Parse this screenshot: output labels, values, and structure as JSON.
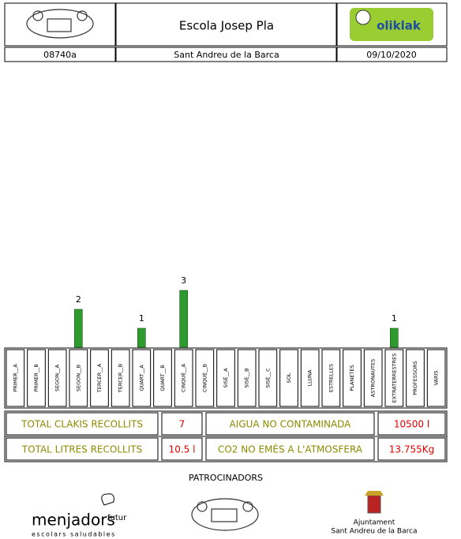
{
  "header": {
    "school": "Escola Josep Pla",
    "logo": "oliklak",
    "code": "08740a",
    "town": "Sant Andreu de la Barca",
    "date": "09/10/2020"
  },
  "chart_data": {
    "type": "bar",
    "color": "#2f9a2f",
    "categories": [
      "PRIMER__A",
      "PRIMER__B",
      "SEGON__A",
      "SEGON__B",
      "TERCER__A",
      "TERCER__B",
      "QUART__A",
      "QUART__B",
      "CINQUÈ__A",
      "CINQUÈ__B",
      "SISÈ__A",
      "SISÈ__B",
      "SISÈ__C",
      "SOL",
      "LLUNA",
      "ESTRELLES",
      "PLANETES",
      "ASTRONAUTES",
      "EXTRATERRESTRES",
      "PROFESSORS",
      "VARIS"
    ],
    "values": [
      0,
      0,
      0,
      2,
      0,
      0,
      1,
      0,
      3,
      0,
      0,
      0,
      0,
      0,
      0,
      0,
      0,
      0,
      1,
      0,
      0
    ]
  },
  "totals": {
    "rows": [
      [
        "TOTAL CLAKIS RECOLLITS",
        "7",
        "AIGUA NO CONTAMINADA",
        "10500 l"
      ],
      [
        "TOTAL LITRES RECOLLITS",
        "10.5 l",
        "CO2 NO EMÈS A L'ATMOSFERA",
        "13.755Kg"
      ]
    ]
  },
  "footer": {
    "title": "PATROCINADORS",
    "sponsor1": "menjadors",
    "sponsor1_sub": "futur",
    "sponsor1_tag": "escolars saludables",
    "sponsor3_line1": "Ajuntament",
    "sponsor3_line2": "Sant Andreu de la Barca"
  }
}
